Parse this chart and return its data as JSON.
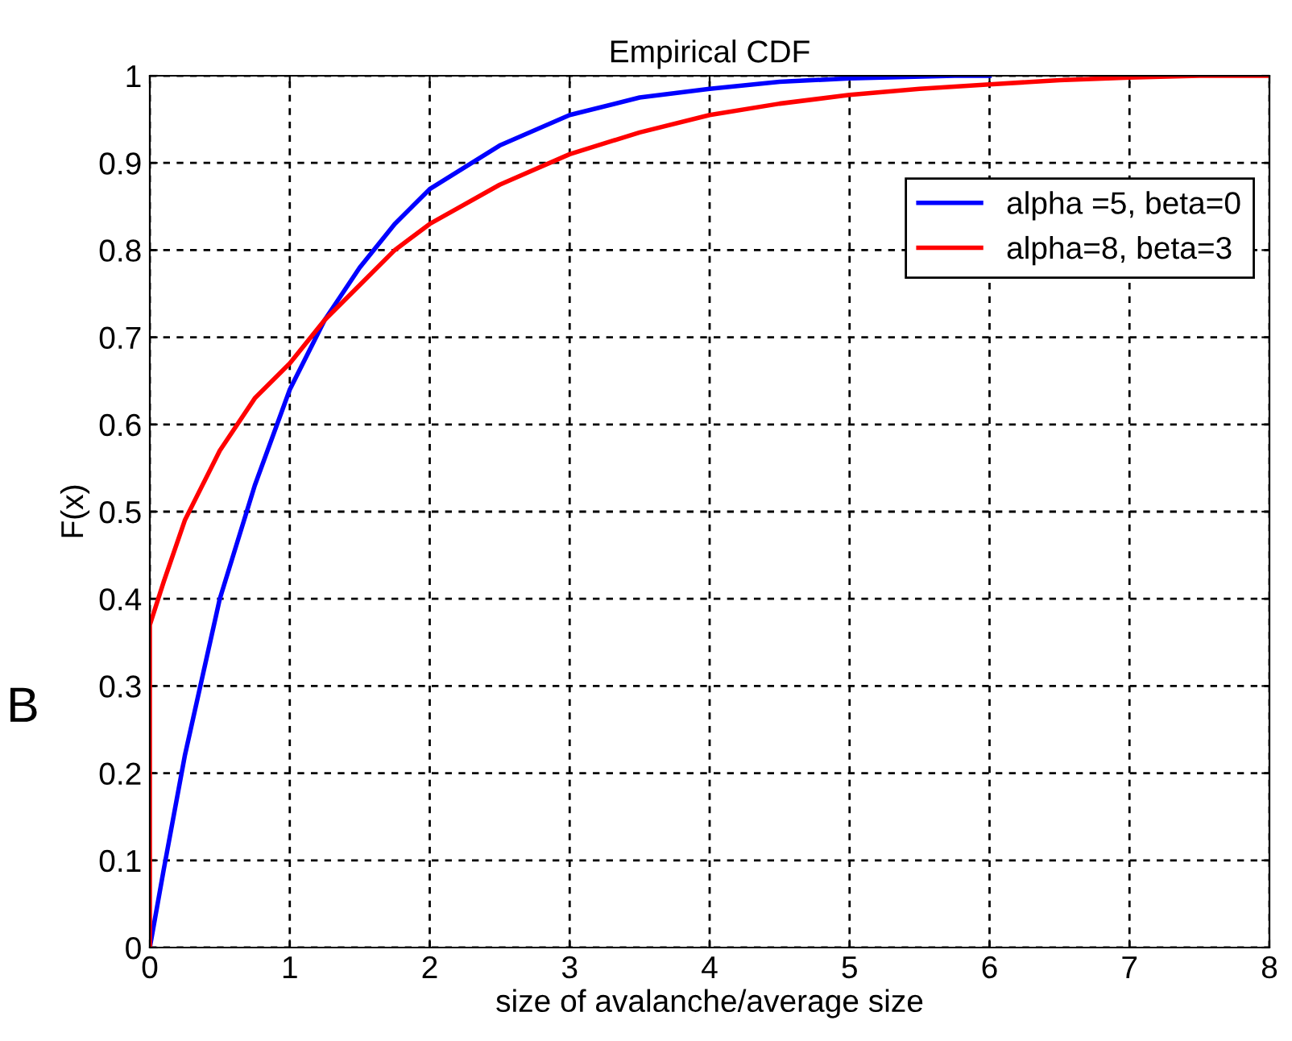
{
  "chart_data": {
    "type": "line",
    "title": "Empirical CDF",
    "xlabel": "size of avalanche/average size",
    "ylabel": "F(x)",
    "xlim": [
      0,
      8
    ],
    "ylim": [
      0,
      1
    ],
    "xticks": [
      0,
      1,
      2,
      3,
      4,
      5,
      6,
      7,
      8
    ],
    "yticks": [
      0,
      0.1,
      0.2,
      0.3,
      0.4,
      0.5,
      0.6,
      0.7,
      0.8,
      0.9,
      1
    ],
    "grid": true,
    "legend": "top right",
    "line_style": "solid",
    "marker": "none",
    "annotations": [
      {
        "text": "B"
      }
    ],
    "series": [
      {
        "name": "alpha =5, beta=0",
        "color": "#0000ff",
        "x": [
          0,
          0.1,
          0.25,
          0.5,
          0.75,
          1.0,
          1.25,
          1.5,
          1.75,
          2.0,
          2.5,
          3,
          3.5,
          4,
          4.5,
          5,
          5.75,
          6
        ],
        "values": [
          0,
          0.09,
          0.22,
          0.4,
          0.53,
          0.64,
          0.72,
          0.78,
          0.83,
          0.87,
          0.92,
          0.955,
          0.975,
          0.985,
          0.993,
          0.997,
          1,
          1
        ]
      },
      {
        "name": "alpha=8, beta=3",
        "color": "#ff0000",
        "x": [
          0,
          0,
          0.1,
          0.25,
          0.5,
          0.75,
          1.0,
          1.25,
          1.5,
          1.75,
          2.0,
          2.5,
          3,
          3.5,
          4,
          4.5,
          5,
          5.5,
          6,
          6.5,
          7,
          7.5,
          8
        ],
        "values": [
          0,
          0.37,
          0.42,
          0.49,
          0.57,
          0.63,
          0.67,
          0.72,
          0.76,
          0.8,
          0.83,
          0.875,
          0.91,
          0.935,
          0.955,
          0.968,
          0.978,
          0.985,
          0.99,
          0.995,
          0.998,
          1,
          1
        ]
      }
    ]
  }
}
